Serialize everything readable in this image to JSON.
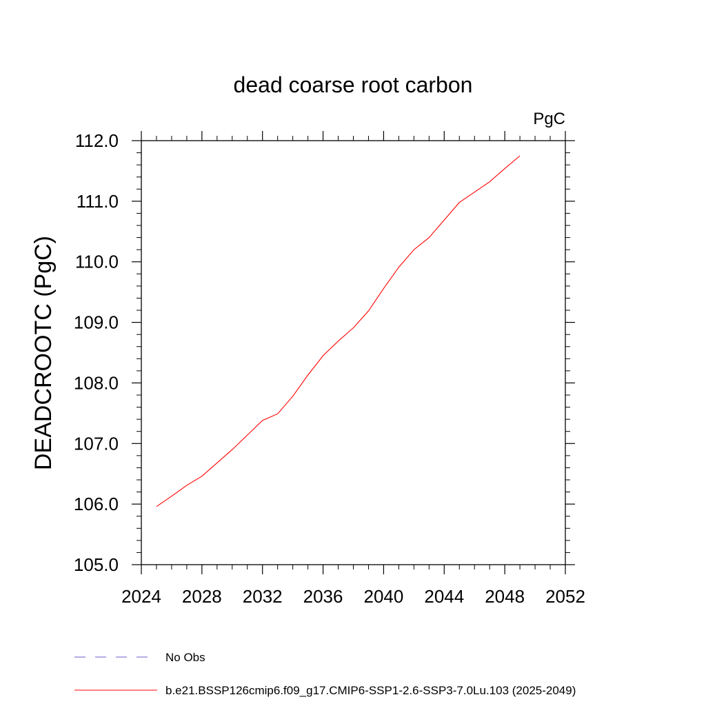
{
  "chart_data": {
    "type": "line",
    "title": "dead coarse root carbon",
    "units": "PgC",
    "ylabel": "DEADCROOTC  (PgC)",
    "xlabel": "",
    "xlim": [
      2024,
      2052
    ],
    "ylim": [
      105.0,
      112.0
    ],
    "x_ticks": [
      "2024",
      "2028",
      "2032",
      "2036",
      "2040",
      "2044",
      "2048",
      "2052"
    ],
    "y_ticks": [
      "105.0",
      "106.0",
      "107.0",
      "108.0",
      "109.0",
      "110.0",
      "111.0",
      "112.0"
    ],
    "grid": false,
    "series": [
      {
        "name": "b.e21.BSSP126cmip6.f09_g17.CMIP6-SSP1-2.6-SSP3-7.0Lu.103 (2025-2049)",
        "color": "#ff0000",
        "x": [
          2025,
          2026,
          2027,
          2028,
          2029,
          2030,
          2031,
          2032,
          2033,
          2034,
          2035,
          2036,
          2037,
          2038,
          2039,
          2040,
          2041,
          2042,
          2043,
          2044,
          2045,
          2046,
          2047,
          2048,
          2049
        ],
        "y": [
          105.96,
          106.13,
          106.31,
          106.46,
          106.68,
          106.9,
          107.14,
          107.38,
          107.49,
          107.78,
          108.13,
          108.45,
          108.69,
          108.91,
          109.19,
          109.56,
          109.91,
          110.2,
          110.4,
          110.69,
          110.98,
          111.15,
          111.32,
          111.54,
          111.75
        ]
      }
    ],
    "legend": {
      "placement": "bottom-left",
      "entries": [
        {
          "label": "No Obs",
          "color": "#6a5acd",
          "style": "dashed"
        },
        {
          "label": "b.e21.BSSP126cmip6.f09_g17.CMIP6-SSP1-2.6-SSP3-7.0Lu.103 (2025-2049)",
          "color": "#ff0000",
          "style": "solid"
        }
      ]
    }
  }
}
